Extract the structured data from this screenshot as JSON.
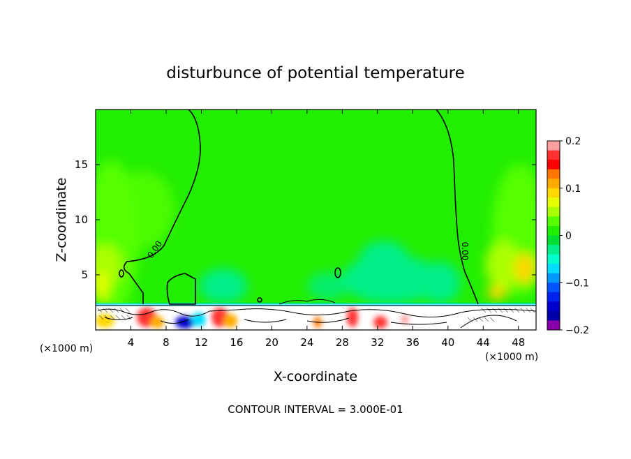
{
  "chart_data": {
    "type": "heatmap",
    "title": "disturbunce of potential temperature",
    "xlabel": "X-coordinate",
    "ylabel": "Z-coordinate",
    "x_unit": "(×1000 m)",
    "y_unit": "(×1000 m)",
    "xlim": [
      0,
      50
    ],
    "ylim": [
      0,
      20
    ],
    "x_ticks": [
      4,
      8,
      12,
      16,
      20,
      24,
      28,
      32,
      36,
      40,
      44,
      48
    ],
    "y_ticks": [
      5,
      10,
      15
    ],
    "colorbar": {
      "range": [
        -0.2,
        0.2
      ],
      "ticks": [
        0.2,
        0.1,
        0,
        -0.1,
        -0.2
      ],
      "tick_labels": [
        "0.2",
        "0.1",
        "0",
        "−0.1",
        "−0.2"
      ],
      "colors": [
        "#ffa0a0",
        "#ff3030",
        "#ff0000",
        "#ff7700",
        "#ffaa00",
        "#ffd700",
        "#e6ff00",
        "#aaff00",
        "#55ff00",
        "#22ee00",
        "#00dd33",
        "#00ee88",
        "#00ffcc",
        "#00ddff",
        "#0099ff",
        "#0055ff",
        "#0022ee",
        "#0000cc",
        "#0000aa",
        "#8800aa"
      ]
    },
    "contour_label": "0.00",
    "contour_interval_text": "CONTOUR INTERVAL = 3.000E-01",
    "background_value": 0.0,
    "field_description_values": {
      "upper_domain": 0.0,
      "lower_layer_top_z": 2.3
    }
  }
}
